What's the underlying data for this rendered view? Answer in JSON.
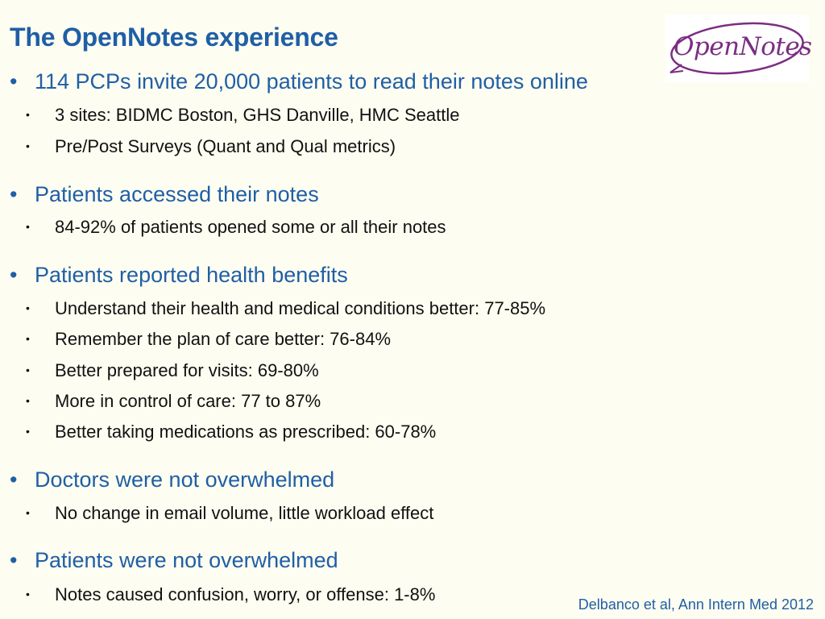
{
  "slide": {
    "title": "The OpenNotes experience",
    "logo_text": "OpenNotes",
    "citation": "Delbanco et al, Ann Intern Med 2012",
    "bullets": [
      {
        "level": 1,
        "text": "114 PCPs invite 20,000 patients to read their notes online"
      },
      {
        "level": 2,
        "text": "3 sites: BIDMC Boston, GHS Danville, HMC Seattle"
      },
      {
        "level": 2,
        "text": "Pre/Post Surveys (Quant and Qual metrics)"
      },
      {
        "level": 1,
        "text": "Patients accessed their notes"
      },
      {
        "level": 2,
        "text": "84-92% of patients opened some or all their notes"
      },
      {
        "level": 1,
        "text": "Patients reported health benefits"
      },
      {
        "level": 2,
        "text": "Understand their health and medical conditions better: 77-85%"
      },
      {
        "level": 2,
        "text": "Remember the plan of care better: 76-84%"
      },
      {
        "level": 2,
        "text": "Better prepared for visits: 69-80%"
      },
      {
        "level": 2,
        "text": "More in control of care: 77 to 87%"
      },
      {
        "level": 2,
        "text": "Better taking medications as prescribed: 60-78%"
      },
      {
        "level": 1,
        "text": "Doctors were not overwhelmed"
      },
      {
        "level": 2,
        "text": "No change in email volume, little workload effect"
      },
      {
        "level": 1,
        "text": "Patients were not overwhelmed"
      },
      {
        "level": 2,
        "text": "Notes caused confusion, worry, or offense: 1-8%"
      }
    ]
  },
  "colors": {
    "background": "#fefdf1",
    "heading": "#1f5fa6",
    "body_text": "#111111",
    "logo": "#7b2d83"
  },
  "icons": {
    "logo": "opennotes-logo-icon"
  }
}
